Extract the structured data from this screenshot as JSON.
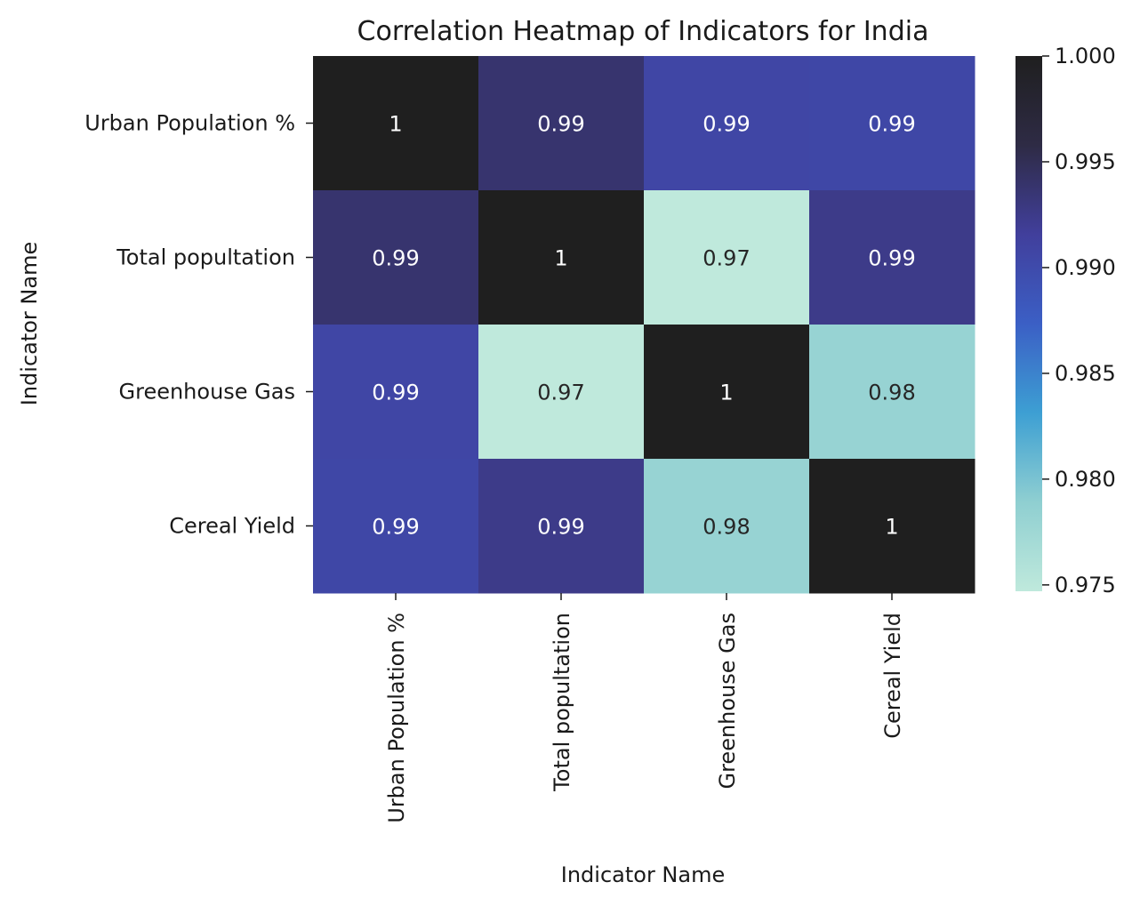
{
  "chart_data": {
    "type": "heatmap",
    "title": "Correlation Heatmap of Indicators for India",
    "xlabel": "Indicator Name",
    "ylabel": "Indicator Name",
    "x_categories": [
      "Urban Population %",
      "Total popultation",
      "Greenhouse Gas",
      "Cereal Yield"
    ],
    "y_categories": [
      "Urban Population %",
      "Total popultation",
      "Greenhouse Gas",
      "Cereal Yield"
    ],
    "values": [
      [
        1.0,
        0.9938,
        0.9906,
        0.9905
      ],
      [
        0.9938,
        1.0,
        0.9747,
        0.9925
      ],
      [
        0.9906,
        0.9747,
        1.0,
        0.9782
      ],
      [
        0.9905,
        0.9925,
        0.9782,
        1.0
      ]
    ],
    "annotations": [
      [
        "1",
        "0.99",
        "0.99",
        "0.99"
      ],
      [
        "0.99",
        "1",
        "0.97",
        "0.99"
      ],
      [
        "0.99",
        "0.97",
        "1",
        "0.98"
      ],
      [
        "0.99",
        "0.99",
        "0.98",
        "1"
      ]
    ],
    "colorbar": {
      "vmin": 0.9747,
      "vmax": 1.0,
      "ticks": [
        0.975,
        0.98,
        0.985,
        0.99,
        0.995,
        1.0
      ],
      "tick_labels": [
        "0.975",
        "0.980",
        "0.985",
        "0.990",
        "0.995",
        "1.000"
      ]
    },
    "colormap": [
      "#bfe9dc",
      "#8fcfd1",
      "#3d9fd3",
      "#3b5fc5",
      "#413f9c",
      "#2e2b45",
      "#1f1f1f"
    ]
  }
}
